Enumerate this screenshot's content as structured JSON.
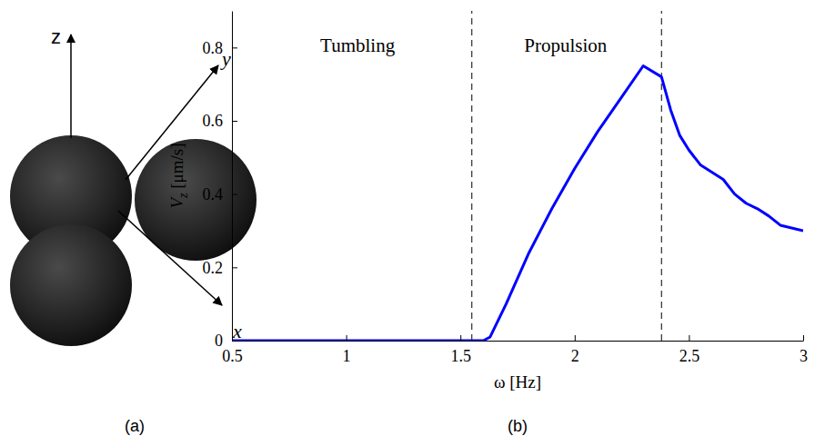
{
  "diagram": {
    "panel_label": "(a)",
    "axes": [
      "z",
      "y",
      "x"
    ]
  },
  "chart_data": {
    "type": "line",
    "panel_label": "(b)",
    "xlabel": "ω [Hz]",
    "ylabel": "Vz [μm/s]",
    "x": [
      0.5,
      1.0,
      1.5,
      1.6,
      1.63,
      1.7,
      1.8,
      1.9,
      2.0,
      2.1,
      2.2,
      2.3,
      2.38,
      2.42,
      2.46,
      2.5,
      2.55,
      2.6,
      2.65,
      2.7,
      2.75,
      2.8,
      2.85,
      2.9,
      3.0
    ],
    "series": [
      {
        "color": "#0000ff",
        "values": [
          0,
          0,
          0,
          0,
          0.01,
          0.1,
          0.24,
          0.36,
          0.47,
          0.57,
          0.66,
          0.75,
          0.72,
          0.63,
          0.56,
          0.52,
          0.48,
          0.46,
          0.44,
          0.4,
          0.375,
          0.36,
          0.34,
          0.315,
          0.3
        ]
      }
    ],
    "xlim": [
      0.5,
      3
    ],
    "ylim": [
      0,
      0.9
    ],
    "xticks": [
      0.5,
      1,
      1.5,
      2,
      2.5,
      3
    ],
    "yticks": [
      0,
      0.2,
      0.4,
      0.6,
      0.8
    ],
    "vlines": [
      1.55,
      2.38
    ],
    "annotations": [
      {
        "text": "Tumbling",
        "x": 1.05,
        "y": 0.8
      },
      {
        "text": "Propulsion",
        "x": 1.96,
        "y": 0.8
      }
    ],
    "grid": false
  }
}
